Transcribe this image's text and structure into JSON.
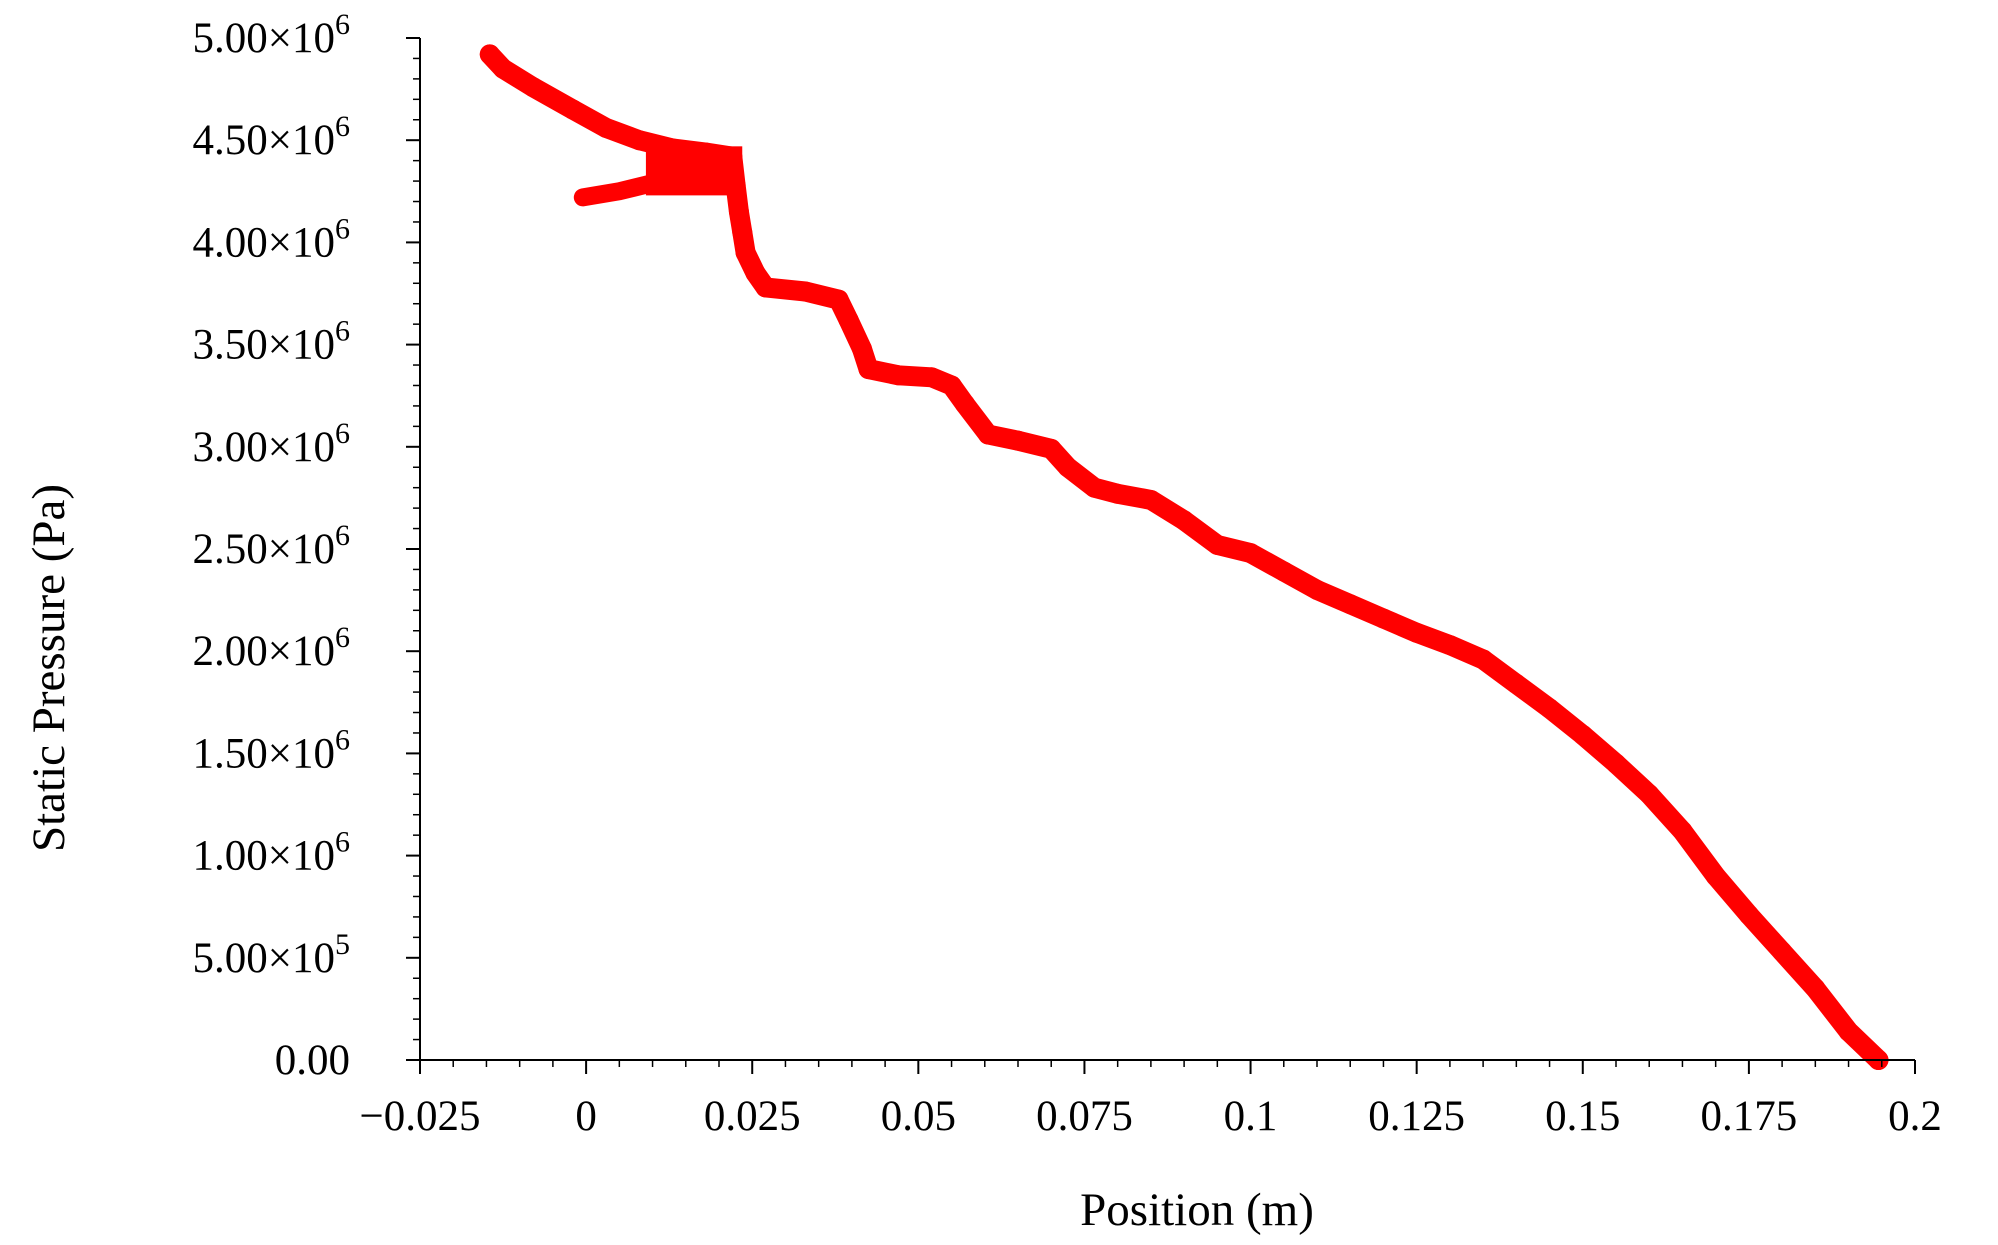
{
  "chart_data": {
    "type": "scatter",
    "title": "",
    "xlabel": "Position (m)",
    "ylabel": "Static Pressure (Pa)",
    "xlim": [
      -0.025,
      0.2
    ],
    "ylim": [
      0,
      5000000
    ],
    "grid": false,
    "legend": "none",
    "x_ticks": [
      {
        "value": -0.025,
        "label": "−0.025"
      },
      {
        "value": 0,
        "label": "0"
      },
      {
        "value": 0.025,
        "label": "0.025"
      },
      {
        "value": 0.05,
        "label": "0.05"
      },
      {
        "value": 0.075,
        "label": "0.075"
      },
      {
        "value": 0.1,
        "label": "0.1"
      },
      {
        "value": 0.125,
        "label": "0.125"
      },
      {
        "value": 0.15,
        "label": "0.15"
      },
      {
        "value": 0.175,
        "label": "0.175"
      },
      {
        "value": 0.2,
        "label": "0.2"
      }
    ],
    "y_ticks": [
      {
        "value": 0,
        "mantissa": "0.00",
        "exponent": ""
      },
      {
        "value": 500000,
        "mantissa": "5.00×10",
        "exponent": "5"
      },
      {
        "value": 1000000,
        "mantissa": "1.00×10",
        "exponent": "6"
      },
      {
        "value": 1500000,
        "mantissa": "1.50×10",
        "exponent": "6"
      },
      {
        "value": 2000000,
        "mantissa": "2.00×10",
        "exponent": "6"
      },
      {
        "value": 2500000,
        "mantissa": "2.50×10",
        "exponent": "6"
      },
      {
        "value": 3000000,
        "mantissa": "3.00×10",
        "exponent": "6"
      },
      {
        "value": 3500000,
        "mantissa": "3.50×10",
        "exponent": "6"
      },
      {
        "value": 4000000,
        "mantissa": "4.00×10",
        "exponent": "6"
      },
      {
        "value": 4500000,
        "mantissa": "4.50×10",
        "exponent": "6"
      },
      {
        "value": 5000000,
        "mantissa": "5.00×10",
        "exponent": "6"
      }
    ],
    "series": [
      {
        "color": "#ff0000",
        "points": [
          [
            -0.0145,
            4920000
          ],
          [
            -0.0125,
            4850000
          ],
          [
            -0.008,
            4760000
          ],
          [
            -0.002,
            4650000
          ],
          [
            0.003,
            4560000
          ],
          [
            0.008,
            4500000
          ],
          [
            0.013,
            4460000
          ],
          [
            0.018,
            4440000
          ],
          [
            0.022,
            4420000
          ],
          [
            0.0225,
            4280000
          ],
          [
            0.023,
            4150000
          ],
          [
            0.0235,
            4050000
          ],
          [
            0.024,
            3950000
          ],
          [
            0.0255,
            3850000
          ],
          [
            0.027,
            3780000
          ],
          [
            0.033,
            3760000
          ],
          [
            0.038,
            3720000
          ],
          [
            0.0395,
            3620000
          ],
          [
            0.0415,
            3480000
          ],
          [
            0.0425,
            3380000
          ],
          [
            0.047,
            3350000
          ],
          [
            0.052,
            3340000
          ],
          [
            0.055,
            3300000
          ],
          [
            0.057,
            3210000
          ],
          [
            0.0605,
            3060000
          ],
          [
            0.065,
            3030000
          ],
          [
            0.07,
            2990000
          ],
          [
            0.0725,
            2900000
          ],
          [
            0.0765,
            2800000
          ],
          [
            0.08,
            2770000
          ],
          [
            0.085,
            2740000
          ],
          [
            0.09,
            2640000
          ],
          [
            0.095,
            2520000
          ],
          [
            0.1,
            2480000
          ],
          [
            0.105,
            2390000
          ],
          [
            0.11,
            2300000
          ],
          [
            0.115,
            2230000
          ],
          [
            0.12,
            2160000
          ],
          [
            0.125,
            2090000
          ],
          [
            0.13,
            2030000
          ],
          [
            0.135,
            1960000
          ],
          [
            0.14,
            1840000
          ],
          [
            0.145,
            1720000
          ],
          [
            0.15,
            1590000
          ],
          [
            0.155,
            1450000
          ],
          [
            0.16,
            1300000
          ],
          [
            0.165,
            1120000
          ],
          [
            0.17,
            900000
          ],
          [
            0.175,
            710000
          ],
          [
            0.18,
            530000
          ],
          [
            0.185,
            350000
          ],
          [
            0.19,
            140000
          ],
          [
            0.1945,
            0
          ]
        ],
        "branch": [
          [
            0.022,
            4380000
          ],
          [
            0.016,
            4320000
          ],
          [
            0.01,
            4290000
          ],
          [
            0.005,
            4250000
          ],
          [
            -0.0005,
            4220000
          ]
        ]
      }
    ]
  }
}
